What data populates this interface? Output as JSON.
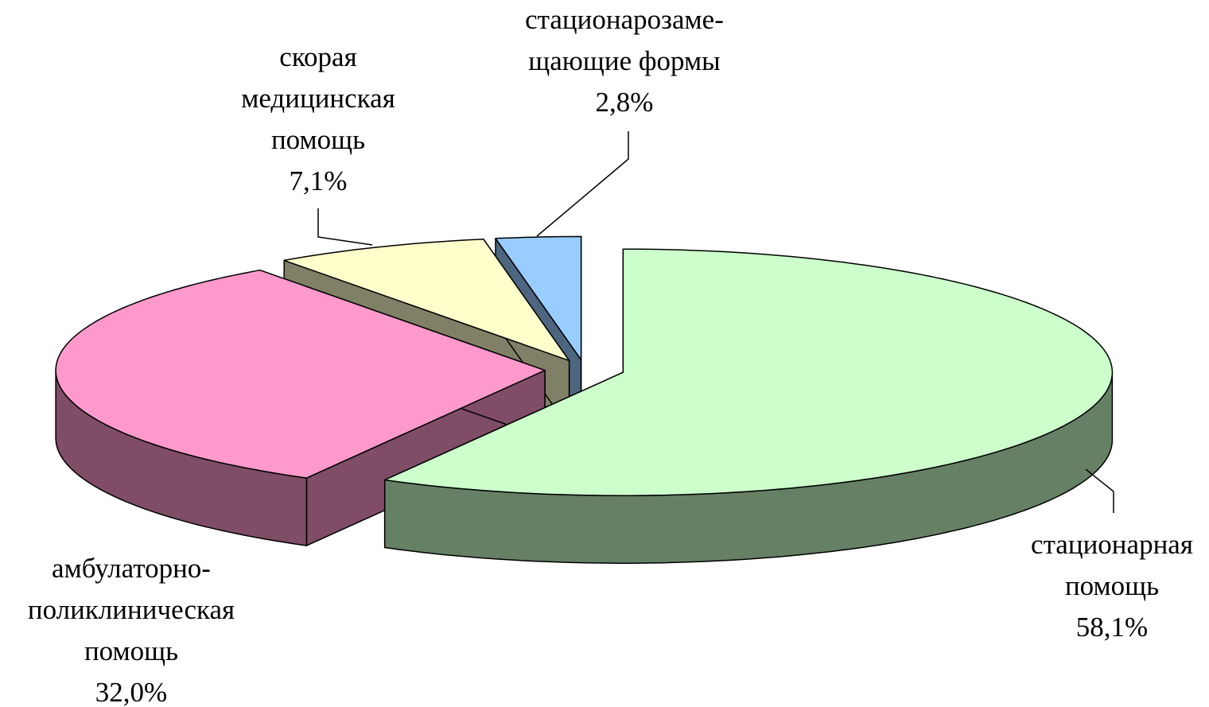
{
  "chart_data": {
    "type": "pie3d",
    "categories": [
      [
        "стационарная",
        "помощь"
      ],
      [
        "амбулаторно-",
        "поликлиническая",
        "помощь"
      ],
      [
        "скорая",
        "медицинская",
        "помощь"
      ],
      [
        "стационарозаме-",
        "щающие формы"
      ]
    ],
    "values": [
      58.1,
      32.0,
      7.1,
      2.8
    ],
    "value_labels": [
      "58,1%",
      "32,0%",
      "7,1%",
      "2,8%"
    ],
    "colors": [
      "#ccffcc",
      "#ff99cc",
      "#ffffcc",
      "#99ccff"
    ]
  }
}
